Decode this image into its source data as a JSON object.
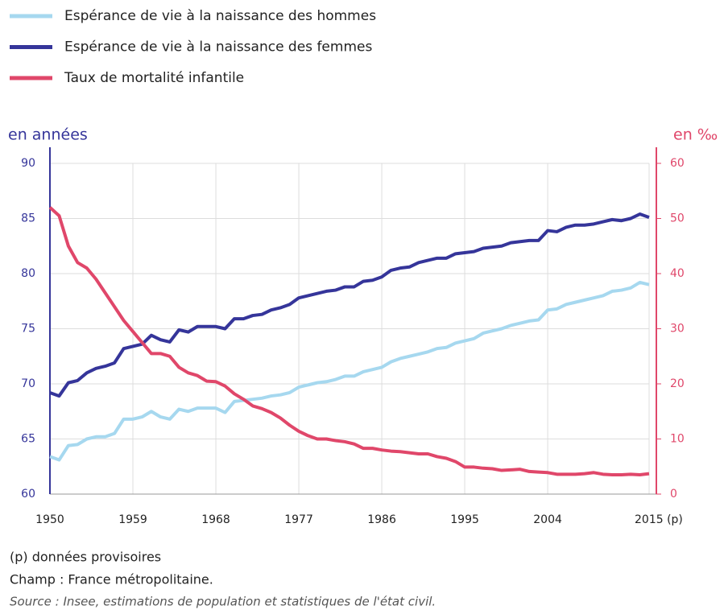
{
  "chart_data": {
    "type": "line",
    "x": [
      1950,
      1951,
      1952,
      1953,
      1954,
      1955,
      1956,
      1957,
      1958,
      1959,
      1960,
      1961,
      1962,
      1963,
      1964,
      1965,
      1966,
      1967,
      1968,
      1969,
      1970,
      1971,
      1972,
      1973,
      1974,
      1975,
      1976,
      1977,
      1978,
      1979,
      1980,
      1981,
      1982,
      1983,
      1984,
      1985,
      1986,
      1987,
      1988,
      1989,
      1990,
      1991,
      1992,
      1993,
      1994,
      1995,
      1996,
      1997,
      1998,
      1999,
      2000,
      2001,
      2002,
      2003,
      2004,
      2005,
      2006,
      2007,
      2008,
      2009,
      2010,
      2011,
      2012,
      2013,
      2014,
      2015
    ],
    "series": [
      {
        "name": "Espérance de vie à la naissance des hommes",
        "color": "#a6d8ef",
        "axis": "y",
        "values": [
          63.4,
          63.1,
          64.4,
          64.5,
          65.0,
          65.2,
          65.2,
          65.5,
          66.8,
          66.8,
          67.0,
          67.5,
          67.0,
          66.8,
          67.7,
          67.5,
          67.8,
          67.8,
          67.8,
          67.4,
          68.4,
          68.5,
          68.6,
          68.7,
          68.9,
          69.0,
          69.2,
          69.7,
          69.9,
          70.1,
          70.2,
          70.4,
          70.7,
          70.7,
          71.1,
          71.3,
          71.5,
          72.0,
          72.3,
          72.5,
          72.7,
          72.9,
          73.2,
          73.3,
          73.7,
          73.9,
          74.1,
          74.6,
          74.8,
          75.0,
          75.3,
          75.5,
          75.7,
          75.8,
          76.7,
          76.8,
          77.2,
          77.4,
          77.6,
          77.8,
          78.0,
          78.4,
          78.5,
          78.7,
          79.2,
          79.0
        ]
      },
      {
        "name": "Espérance de vie à la naissance des femmes",
        "color": "#35359a",
        "axis": "y",
        "values": [
          69.2,
          68.9,
          70.1,
          70.3,
          71.0,
          71.4,
          71.6,
          71.9,
          73.2,
          73.4,
          73.6,
          74.4,
          74.0,
          73.8,
          74.9,
          74.7,
          75.2,
          75.2,
          75.2,
          75.0,
          75.9,
          75.9,
          76.2,
          76.3,
          76.7,
          76.9,
          77.2,
          77.8,
          78.0,
          78.2,
          78.4,
          78.5,
          78.8,
          78.8,
          79.3,
          79.4,
          79.7,
          80.3,
          80.5,
          80.6,
          81.0,
          81.2,
          81.4,
          81.4,
          81.8,
          81.9,
          82.0,
          82.3,
          82.4,
          82.5,
          82.8,
          82.9,
          83.0,
          83.0,
          83.9,
          83.8,
          84.2,
          84.4,
          84.4,
          84.5,
          84.7,
          84.9,
          84.8,
          85.0,
          85.4,
          85.1
        ]
      },
      {
        "name": "Taux de mortalité infantile",
        "color": "#e0476a",
        "axis": "y2",
        "values": [
          52,
          50.5,
          45,
          42,
          41,
          39,
          36.5,
          34,
          31.5,
          29.5,
          27.5,
          25.5,
          25.5,
          25,
          23,
          22,
          21.5,
          20.5,
          20.4,
          19.6,
          18.2,
          17.2,
          16,
          15.5,
          14.8,
          13.8,
          12.5,
          11.4,
          10.6,
          10,
          10,
          9.7,
          9.5,
          9.1,
          8.3,
          8.3,
          8.0,
          7.8,
          7.7,
          7.5,
          7.3,
          7.3,
          6.8,
          6.5,
          5.9,
          4.9,
          4.9,
          4.7,
          4.6,
          4.3,
          4.4,
          4.5,
          4.1,
          4.0,
          3.9,
          3.6,
          3.6,
          3.6,
          3.7,
          3.9,
          3.6,
          3.5,
          3.5,
          3.6,
          3.5,
          3.7
        ]
      }
    ],
    "y_label": "en années",
    "y2_label": "en ‰",
    "xlim": [
      1950,
      2015
    ],
    "xticks": [
      1950,
      1959,
      1968,
      1977,
      1986,
      1995,
      2004,
      {
        "value": 2015,
        "label": "2015 (p)"
      }
    ],
    "ylim": [
      60,
      90
    ],
    "yticks": [
      60,
      65,
      70,
      75,
      80,
      85,
      90
    ],
    "y2lim": [
      0,
      60
    ],
    "y2ticks": [
      0,
      10,
      20,
      30,
      40,
      50,
      60
    ],
    "grid": true,
    "legend": "top-left",
    "notes": [
      "(p) données provisoires",
      "Champ : France métropolitaine.",
      "Source : Insee, estimations de population et statistiques de l'état civil."
    ]
  }
}
